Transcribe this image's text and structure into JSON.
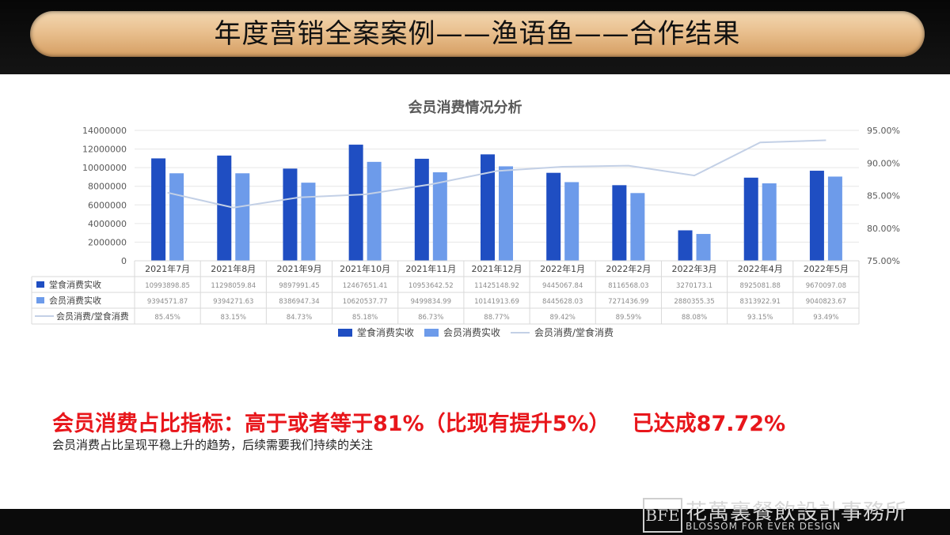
{
  "header": {
    "title": "年度营销全案案例——渔语鱼——合作结果"
  },
  "chart_data": {
    "type": "bar",
    "title": "会员消费情况分析",
    "categories": [
      "2021年7月",
      "2021年8月",
      "2021年9月",
      "2021年10月",
      "2021年11月",
      "2021年12月",
      "2022年1月",
      "2022年2月",
      "2022年3月",
      "2022年4月",
      "2022年5月"
    ],
    "y_ticks": [
      "0",
      "2000000",
      "4000000",
      "6000000",
      "8000000",
      "10000000",
      "12000000",
      "14000000"
    ],
    "y2_ticks": [
      "75.00%",
      "80.00%",
      "85.00%",
      "90.00%",
      "95.00%"
    ],
    "ylim": [
      0,
      14000000
    ],
    "y2lim": [
      75,
      95
    ],
    "series": [
      {
        "name": "堂食消费实收",
        "type": "bar",
        "color": "#1f4ec2",
        "values": [
          10993898.85,
          11298059.84,
          9897991.45,
          12467651.41,
          10953642.52,
          11425148.92,
          9445067.84,
          8116568.03,
          3270173.1,
          8925081.88,
          9670097.08
        ],
        "labels": [
          "10993898.85",
          "11298059.84",
          "9897991.45",
          "12467651.41",
          "10953642.52",
          "11425148.92",
          "9445067.84",
          "8116568.03",
          "3270173.1",
          "8925081.88",
          "9670097.08"
        ]
      },
      {
        "name": "会员消费实收",
        "type": "bar",
        "color": "#6d9bea",
        "values": [
          9394571.87,
          9394271.63,
          8386947.34,
          10620537.77,
          9499834.99,
          10141913.69,
          8445628.03,
          7271436.99,
          2880355.35,
          8313922.91,
          9040823.67
        ],
        "labels": [
          "9394571.87",
          "9394271.63",
          "8386947.34",
          "10620537.77",
          "9499834.99",
          "10141913.69",
          "8445628.03",
          "7271436.99",
          "2880355.35",
          "8313922.91",
          "9040823.67"
        ]
      },
      {
        "name": "会员消费/堂食消费",
        "type": "line",
        "axis": "right",
        "color": "#c3d0e6",
        "values": [
          85.45,
          83.15,
          84.73,
          85.18,
          86.73,
          88.77,
          89.42,
          89.59,
          88.08,
          93.15,
          93.49
        ],
        "labels": [
          "85.45%",
          "83.15%",
          "84.73%",
          "85.18%",
          "86.73%",
          "88.77%",
          "89.42%",
          "89.59%",
          "88.08%",
          "93.15%",
          "93.49%"
        ]
      }
    ],
    "legend": "bottom"
  },
  "summary": {
    "metric": "会员消费占比指标：高于或者等于81%（比现有提升5%）   已达成87.72%",
    "note": "会员消费占比呈现平稳上升的趋势，后续需要我们持续的关注"
  },
  "watermark": {
    "logo_text": "BFE",
    "cn": "花萬裏餐飲設計事務所",
    "en": "BLOSSOM FOR EVER DESIGN"
  }
}
